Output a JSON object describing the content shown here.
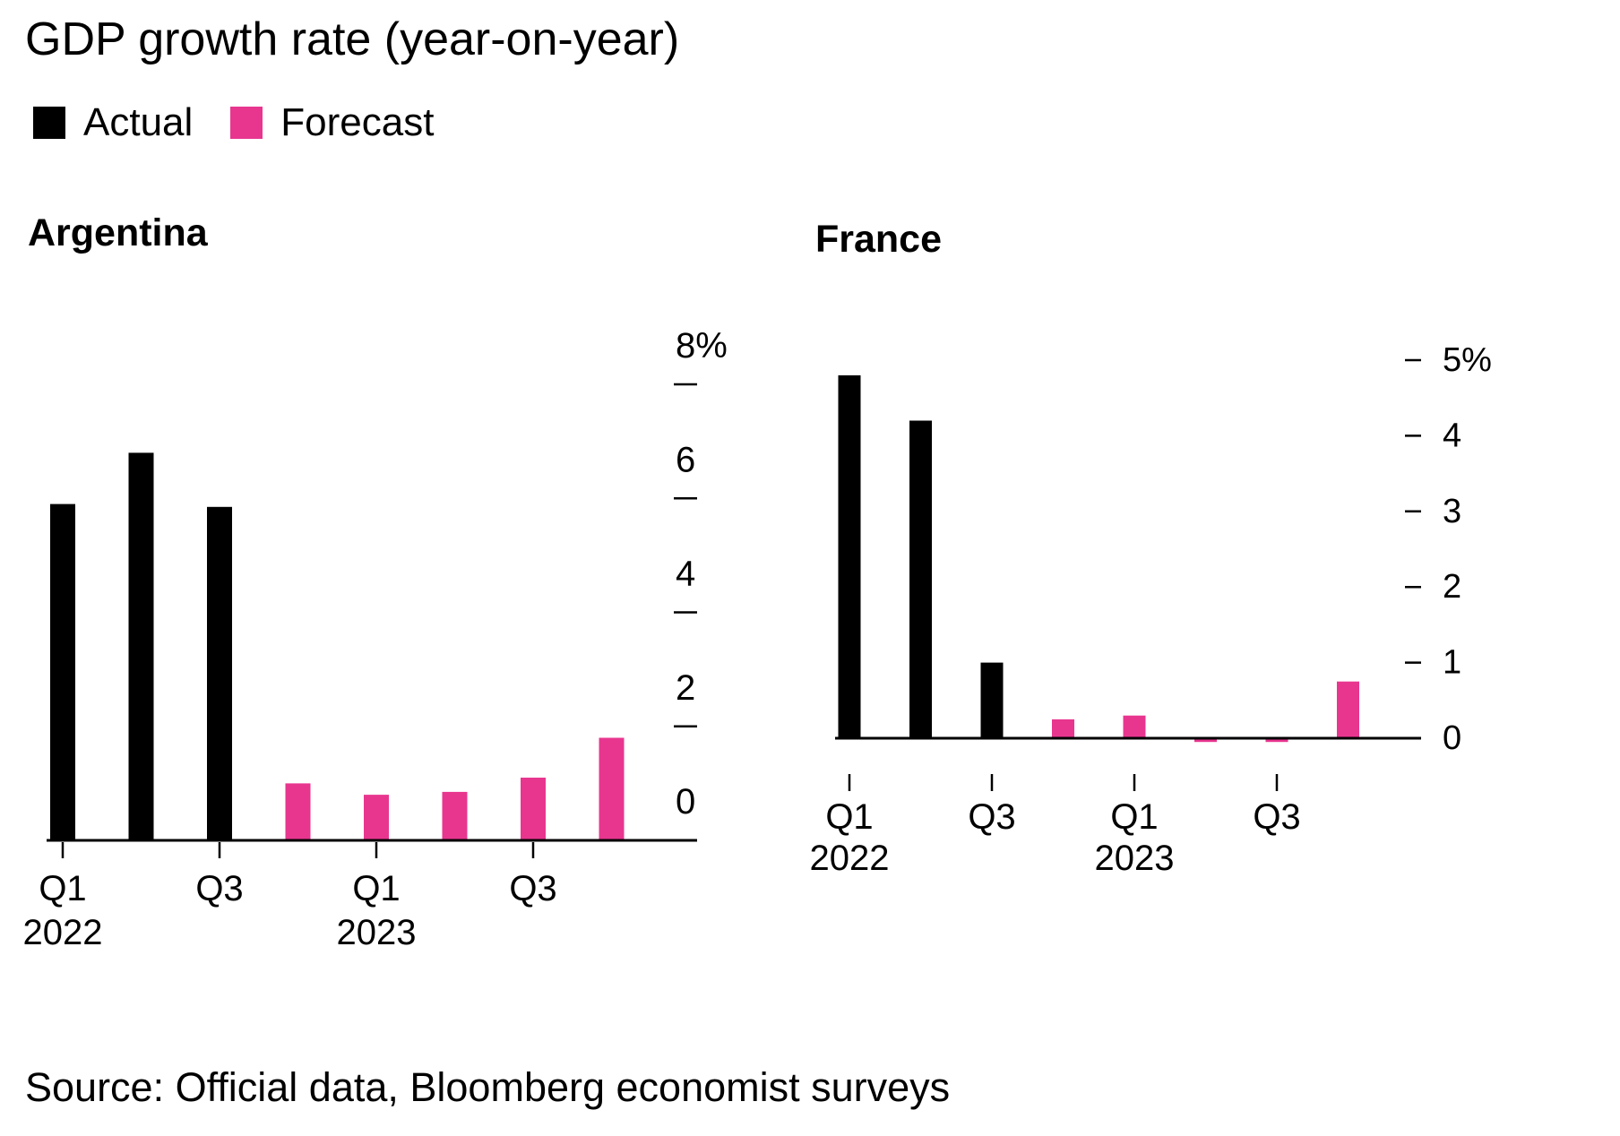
{
  "title": "GDP growth rate (year-on-year)",
  "legend": [
    {
      "label": "Actual",
      "color": "#000000"
    },
    {
      "label": "Forecast",
      "color": "#e8368f"
    }
  ],
  "source": "Source: Official data, Bloomberg economist surveys",
  "chart_data": [
    {
      "type": "bar",
      "title": "Argentina",
      "ylim": [
        0,
        8
      ],
      "y_ticks": [
        0,
        2,
        4,
        6,
        8
      ],
      "y_tick_labels": [
        "0",
        "2",
        "4",
        "6",
        "8%"
      ],
      "y_axis_side": "right",
      "grid": false,
      "categories": [
        "Q1 2022",
        "Q2 2022",
        "Q3 2022",
        "Q4 2022",
        "Q1 2023",
        "Q2 2023",
        "Q3 2023",
        "Q4 2023",
        "Q1 2024"
      ],
      "x_tick_labels": [
        {
          "index": 0,
          "quarter": "Q1",
          "year": "2022"
        },
        {
          "index": 2,
          "quarter": "Q3",
          "year": ""
        },
        {
          "index": 4,
          "quarter": "Q1",
          "year": "2023"
        },
        {
          "index": 6,
          "quarter": "Q3",
          "year": ""
        }
      ],
      "series": [
        {
          "name": "Actual",
          "values": [
            5.9,
            6.8,
            5.85,
            null,
            null,
            null,
            null,
            null,
            null
          ]
        },
        {
          "name": "Forecast",
          "values": [
            null,
            null,
            null,
            1.0,
            0.8,
            0.85,
            1.1,
            1.8,
            null
          ]
        }
      ]
    },
    {
      "type": "bar",
      "title": "France",
      "ylim": [
        0,
        5
      ],
      "y_ticks": [
        0,
        1,
        2,
        3,
        4,
        5
      ],
      "y_tick_labels": [
        "0",
        "1",
        "2",
        "3",
        "4",
        "5%"
      ],
      "y_axis_side": "right",
      "grid": false,
      "categories": [
        "Q1 2022",
        "Q2 2022",
        "Q3 2022",
        "Q4 2022",
        "Q1 2023",
        "Q2 2023",
        "Q3 2023",
        "Q4 2023"
      ],
      "x_tick_labels": [
        {
          "index": 0,
          "quarter": "Q1",
          "year": "2022"
        },
        {
          "index": 2,
          "quarter": "Q3",
          "year": ""
        },
        {
          "index": 4,
          "quarter": "Q1",
          "year": "2023"
        },
        {
          "index": 6,
          "quarter": "Q3",
          "year": ""
        }
      ],
      "series": [
        {
          "name": "Actual",
          "values": [
            4.8,
            4.2,
            1.0,
            null,
            null,
            null,
            null,
            null
          ]
        },
        {
          "name": "Forecast",
          "values": [
            null,
            null,
            null,
            0.25,
            0.3,
            -0.05,
            -0.05,
            0.75
          ]
        }
      ]
    }
  ]
}
